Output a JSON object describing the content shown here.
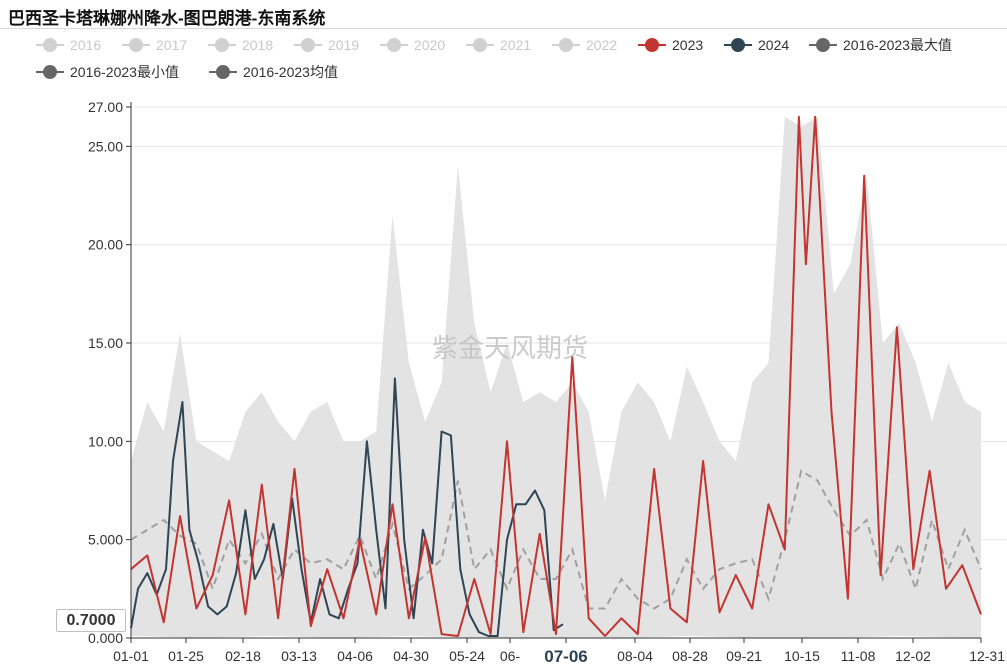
{
  "title": "巴西圣卡塔琳娜州降水-图巴朗港-东南系统",
  "watermark": "紫金天风期货",
  "axis_pointer_value": "0.7000",
  "colors": {
    "series_2023": "#c23531",
    "series_2024": "#2f4554",
    "band": "#e3e3e3",
    "mean": "#a0a0a0",
    "legend_off": "#d0d0d0",
    "legend_stat": "#666666"
  },
  "legend": [
    {
      "label": "2016",
      "state": "off"
    },
    {
      "label": "2017",
      "state": "off"
    },
    {
      "label": "2018",
      "state": "off"
    },
    {
      "label": "2019",
      "state": "off"
    },
    {
      "label": "2020",
      "state": "off"
    },
    {
      "label": "2021",
      "state": "off"
    },
    {
      "label": "2022",
      "state": "off"
    },
    {
      "label": "2023",
      "state": "on",
      "color": "#c23531"
    },
    {
      "label": "2024",
      "state": "on",
      "color": "#2f4554"
    },
    {
      "label": "2016-2023最大值",
      "state": "on",
      "color": "#666666"
    },
    {
      "label": "2016-2023最小值",
      "state": "on",
      "color": "#666666"
    },
    {
      "label": "2016-2023均值",
      "state": "on",
      "color": "#666666"
    }
  ],
  "chart_data": {
    "type": "line",
    "ylim": [
      0,
      27
    ],
    "yticks": [
      "0.000",
      "5.000",
      "10.00",
      "15.00",
      "20.00",
      "25.00",
      "27.00"
    ],
    "xticks": [
      "01-01",
      "01-25",
      "02-18",
      "03-13",
      "04-06",
      "04-30",
      "05-24",
      "06-",
      "07-06",
      "08-04",
      "08-28",
      "09-21",
      "10-15",
      "11-08",
      "12-02",
      "12-31"
    ],
    "highlighted_x": "07-06",
    "series": [
      {
        "name": "2023",
        "x": [
          1,
          8,
          15,
          22,
          29,
          36,
          43,
          50,
          57,
          64,
          71,
          78,
          85,
          92,
          99,
          106,
          113,
          120,
          127,
          134,
          141,
          148,
          155,
          162,
          169,
          176,
          183,
          190,
          197,
          204,
          211,
          218,
          225,
          232,
          239,
          246,
          253,
          260,
          267,
          274,
          281,
          287,
          290,
          294,
          301,
          308,
          315,
          322,
          329,
          336,
          343,
          350,
          357,
          365
        ],
        "values": [
          3.5,
          4.2,
          0.8,
          6.2,
          1.5,
          3.2,
          7.0,
          1.2,
          7.8,
          1.0,
          8.6,
          0.6,
          3.5,
          1.0,
          5.0,
          1.2,
          6.8,
          1.0,
          5.1,
          0.2,
          0.1,
          3.0,
          0.2,
          10.0,
          0.3,
          5.3,
          0.2,
          14.3,
          1.0,
          0.1,
          1.0,
          0.2,
          8.6,
          1.5,
          0.8,
          9.0,
          1.3,
          3.2,
          1.5,
          6.8,
          4.5,
          26.5,
          19.0,
          26.5,
          11.5,
          2.0,
          23.5,
          3.2,
          15.8,
          3.5,
          8.5,
          2.5,
          3.7,
          1.2
        ]
      },
      {
        "name": "2024",
        "x": [
          1,
          4,
          8,
          12,
          16,
          19,
          23,
          26,
          30,
          34,
          38,
          42,
          46,
          50,
          54,
          58,
          62,
          66,
          70,
          74,
          78,
          82,
          86,
          90,
          94,
          98,
          102,
          106,
          110,
          114,
          118,
          122,
          126,
          130,
          134,
          138,
          142,
          146,
          150,
          154,
          158,
          162,
          166,
          170,
          174,
          178,
          182,
          186
        ],
        "values": [
          0.5,
          2.5,
          3.3,
          2.2,
          3.5,
          9.0,
          12.0,
          5.5,
          3.8,
          1.6,
          1.2,
          1.6,
          3.3,
          6.5,
          3.0,
          4.0,
          5.8,
          3.0,
          7.1,
          3.5,
          0.8,
          3.0,
          1.2,
          1.0,
          2.5,
          3.8,
          10.0,
          5.5,
          1.5,
          13.2,
          5.0,
          1.0,
          5.5,
          3.8,
          10.5,
          10.3,
          3.5,
          1.2,
          0.3,
          0.1,
          0.1,
          5.0,
          6.8,
          6.8,
          7.5,
          6.5,
          0.4,
          0.7
        ]
      },
      {
        "name": "2016-2023最大值",
        "x": [
          1,
          8,
          15,
          22,
          29,
          36,
          43,
          50,
          57,
          64,
          71,
          78,
          85,
          92,
          99,
          106,
          113,
          120,
          127,
          134,
          141,
          148,
          155,
          162,
          169,
          176,
          183,
          190,
          197,
          204,
          211,
          218,
          225,
          232,
          239,
          246,
          253,
          260,
          267,
          274,
          281,
          288,
          295,
          302,
          309,
          316,
          323,
          330,
          337,
          344,
          351,
          358,
          365
        ],
        "values": [
          9.0,
          12.0,
          10.5,
          15.5,
          10.0,
          9.5,
          9.0,
          11.5,
          12.5,
          11.0,
          10.0,
          11.5,
          12.0,
          10.0,
          10.0,
          10.5,
          21.5,
          14.0,
          11.0,
          13.0,
          24.0,
          16.0,
          12.5,
          15.0,
          12.0,
          12.5,
          12.0,
          13.0,
          11.5,
          7.0,
          11.5,
          13.0,
          12.0,
          10.0,
          13.8,
          12.0,
          10.0,
          9.0,
          13.0,
          14.0,
          26.5,
          26.0,
          26.5,
          17.5,
          19.0,
          23.5,
          15.0,
          16.0,
          14.0,
          11.0,
          14.0,
          12.0,
          11.5
        ]
      },
      {
        "name": "2016-2023最小值",
        "x": [
          1,
          30,
          60,
          90,
          120,
          150,
          180,
          210,
          240,
          270,
          300,
          330,
          365
        ],
        "values": [
          0.1,
          0.0,
          0.1,
          0.0,
          0.1,
          0.0,
          0.0,
          0.0,
          0.1,
          0.0,
          0.0,
          0.1,
          0.0
        ]
      },
      {
        "name": "2016-2023均值",
        "x": [
          1,
          8,
          15,
          22,
          29,
          36,
          43,
          50,
          57,
          64,
          71,
          78,
          85,
          92,
          99,
          106,
          113,
          120,
          127,
          134,
          141,
          148,
          155,
          162,
          169,
          176,
          183,
          190,
          197,
          204,
          211,
          218,
          225,
          232,
          239,
          246,
          253,
          260,
          267,
          274,
          281,
          288,
          295,
          302,
          309,
          316,
          323,
          330,
          337,
          344,
          351,
          358,
          365
        ],
        "values": [
          5.0,
          5.5,
          6.0,
          5.2,
          4.8,
          2.5,
          5.0,
          3.8,
          5.3,
          3.0,
          4.5,
          3.8,
          4.0,
          3.5,
          5.2,
          3.0,
          5.8,
          2.5,
          3.2,
          4.0,
          8.0,
          3.5,
          4.5,
          2.5,
          4.5,
          3.0,
          3.0,
          4.5,
          1.5,
          1.5,
          3.0,
          2.0,
          1.5,
          2.0,
          4.0,
          2.5,
          3.5,
          3.8,
          4.0,
          2.0,
          5.0,
          8.5,
          8.0,
          6.5,
          5.2,
          6.0,
          3.0,
          4.8,
          2.5,
          6.0,
          3.5,
          5.5,
          3.5
        ]
      }
    ]
  }
}
